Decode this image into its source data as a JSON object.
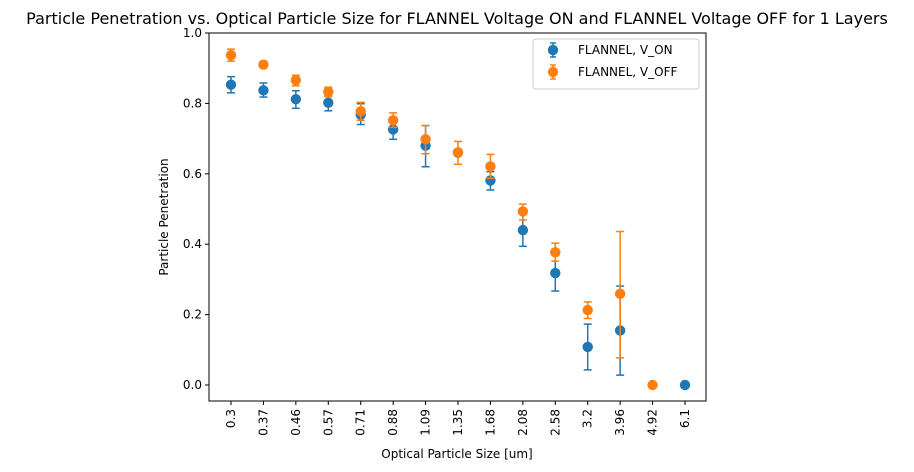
{
  "chart_data": {
    "type": "scatter",
    "title": "Particle Penetration vs. Optical Particle Size for FLANNEL Voltage ON and FLANNEL Voltage OFF for 1 Layers",
    "xlabel": "Optical Particle Size [um]",
    "ylabel": "Particle Penetration",
    "categories": [
      "0.3",
      "0.37",
      "0.46",
      "0.57",
      "0.71",
      "0.88",
      "1.09",
      "1.35",
      "1.68",
      "2.08",
      "2.58",
      "3.2",
      "3.96",
      "4.92",
      "6.1"
    ],
    "ylim": [
      -0.05,
      1.0
    ],
    "yticks": [
      "0.0",
      "0.2",
      "0.4",
      "0.6",
      "0.8",
      "1.0"
    ],
    "legend_position": "top-right",
    "grid": false,
    "series": [
      {
        "name": "FLANNEL, V_ON",
        "color": "#1f77b4",
        "values": [
          0.853,
          0.837,
          0.812,
          0.802,
          0.768,
          0.726,
          0.68,
          0.66,
          0.581,
          0.44,
          0.318,
          0.108,
          0.155,
          null,
          0.0
        ],
        "err_low": [
          0.83,
          0.818,
          0.786,
          0.779,
          0.74,
          0.698,
          0.62,
          null,
          0.554,
          0.394,
          0.267,
          0.043,
          0.028,
          null,
          null
        ],
        "err_high": [
          0.876,
          0.858,
          0.836,
          0.822,
          0.799,
          0.752,
          0.737,
          null,
          0.606,
          0.486,
          0.369,
          0.173,
          0.281,
          null,
          null
        ]
      },
      {
        "name": "FLANNEL, V_OFF",
        "color": "#ff7f0e",
        "values": [
          0.937,
          0.91,
          0.866,
          0.833,
          0.778,
          0.752,
          0.698,
          0.661,
          0.621,
          0.493,
          0.377,
          0.213,
          0.259,
          0.0,
          null
        ],
        "err_low": [
          0.92,
          0.902,
          0.85,
          0.819,
          0.752,
          0.732,
          0.657,
          0.627,
          0.587,
          0.469,
          0.352,
          0.189,
          0.077,
          null,
          null
        ],
        "err_high": [
          0.954,
          0.919,
          0.88,
          0.846,
          0.803,
          0.773,
          0.737,
          0.692,
          0.655,
          0.514,
          0.403,
          0.236,
          0.436,
          null,
          null
        ]
      }
    ]
  }
}
